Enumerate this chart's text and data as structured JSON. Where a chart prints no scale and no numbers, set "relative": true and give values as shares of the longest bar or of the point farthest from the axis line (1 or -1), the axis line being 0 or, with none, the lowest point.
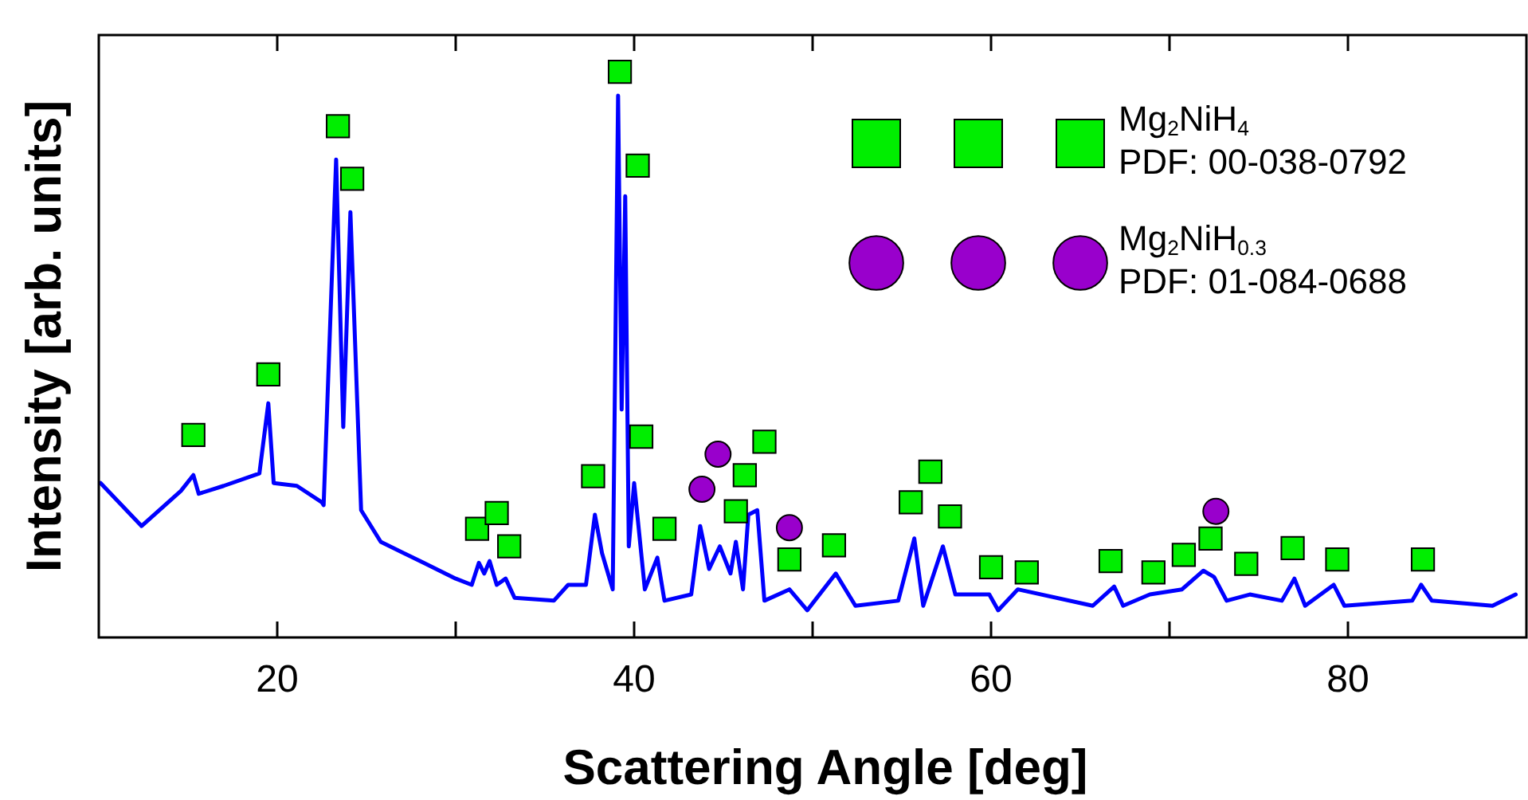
{
  "chart_data": {
    "type": "line",
    "xlabel": "Scattering Angle [deg]",
    "ylabel": "Intensity [arb. units]",
    "relative": true,
    "xlim": [
      10,
      90
    ],
    "xticks": [
      20,
      {
        "value": 30,
        "label": null
      },
      40,
      {
        "value": 50,
        "label": null
      },
      60,
      {
        "value": 70,
        "label": null
      },
      80
    ],
    "tick_labels": "x",
    "grid": false,
    "legend": "top right",
    "series": [
      {
        "color": "#0000ff",
        "line_style": "solid",
        "marker": "none",
        "x": [
          10.1,
          12.4,
          14.6,
          15.3,
          15.6,
          17.0,
          19.0,
          19.5,
          19.8,
          21.1,
          22.5,
          22.6,
          23.3,
          23.7,
          24.1,
          24.7,
          25.8,
          28.2,
          30.0,
          30.9,
          31.3,
          31.6,
          31.9,
          32.3,
          32.8,
          33.3,
          35.5,
          36.3,
          37.3,
          37.8,
          38.2,
          38.8,
          39.1,
          39.3,
          39.5,
          39.7,
          40.0,
          40.6,
          41.3,
          41.7,
          43.2,
          43.7,
          44.2,
          44.8,
          45.4,
          45.7,
          46.1,
          46.4,
          46.9,
          47.3,
          48.7,
          49.7,
          51.3,
          52.4,
          54.8,
          55.7,
          56.2,
          57.3,
          58.0,
          59.9,
          60.4,
          61.5,
          65.7,
          66.9,
          67.4,
          68.9,
          70.7,
          71.9,
          72.5,
          73.2,
          74.5,
          76.3,
          77.0,
          77.6,
          79.2,
          79.8,
          83.6,
          84.1,
          84.7,
          88.1,
          89.4
        ],
        "values": [
          0.273,
          0.197,
          0.259,
          0.287,
          0.254,
          0.268,
          0.29,
          0.414,
          0.273,
          0.268,
          0.239,
          0.234,
          0.845,
          0.372,
          0.752,
          0.225,
          0.169,
          0.132,
          0.104,
          0.093,
          0.132,
          0.113,
          0.135,
          0.093,
          0.104,
          0.07,
          0.065,
          0.093,
          0.093,
          0.217,
          0.149,
          0.085,
          0.958,
          0.403,
          0.78,
          0.161,
          0.273,
          0.085,
          0.141,
          0.065,
          0.076,
          0.197,
          0.121,
          0.161,
          0.113,
          0.169,
          0.085,
          0.217,
          0.225,
          0.065,
          0.085,
          0.048,
          0.113,
          0.056,
          0.065,
          0.175,
          0.056,
          0.161,
          0.076,
          0.076,
          0.048,
          0.085,
          0.056,
          0.09,
          0.056,
          0.076,
          0.085,
          0.118,
          0.107,
          0.065,
          0.076,
          0.065,
          0.104,
          0.056,
          0.093,
          0.056,
          0.065,
          0.093,
          0.065,
          0.056,
          0.076
        ]
      },
      {
        "type": "scatter",
        "name": "Mg$_{2}$NiH$_{4}$\nPDF: 00-038-0792",
        "color": "#00ee00",
        "marker": "square",
        "x": [
          15.3,
          19.5,
          23.4,
          24.2,
          31.2,
          32.3,
          33.0,
          37.7,
          39.2,
          40.2,
          40.4,
          41.7,
          45.7,
          46.2,
          47.3,
          48.7,
          51.2,
          55.5,
          56.6,
          57.7,
          60.0,
          62.0,
          66.7,
          69.1,
          70.8,
          72.3,
          74.3,
          76.9,
          79.4,
          84.2
        ],
        "values": [
          0.358,
          0.465,
          0.904,
          0.811,
          0.192,
          0.22,
          0.161,
          0.285,
          1.0,
          0.834,
          0.355,
          0.192,
          0.223,
          0.287,
          0.346,
          0.138,
          0.163,
          0.239,
          0.293,
          0.214,
          0.124,
          0.115,
          0.135,
          0.115,
          0.146,
          0.175,
          0.13,
          0.158,
          0.138,
          0.138
        ]
      },
      {
        "type": "scatter",
        "name": "Mg$_{2}$NiH$_{0.3}$\nPDF: 01-084-0688",
        "color": "#9900cc",
        "marker": "circle",
        "x": [
          43.8,
          44.7,
          48.7,
          72.6
        ],
        "values": [
          0.262,
          0.324,
          0.194,
          0.223
        ]
      }
    ]
  }
}
